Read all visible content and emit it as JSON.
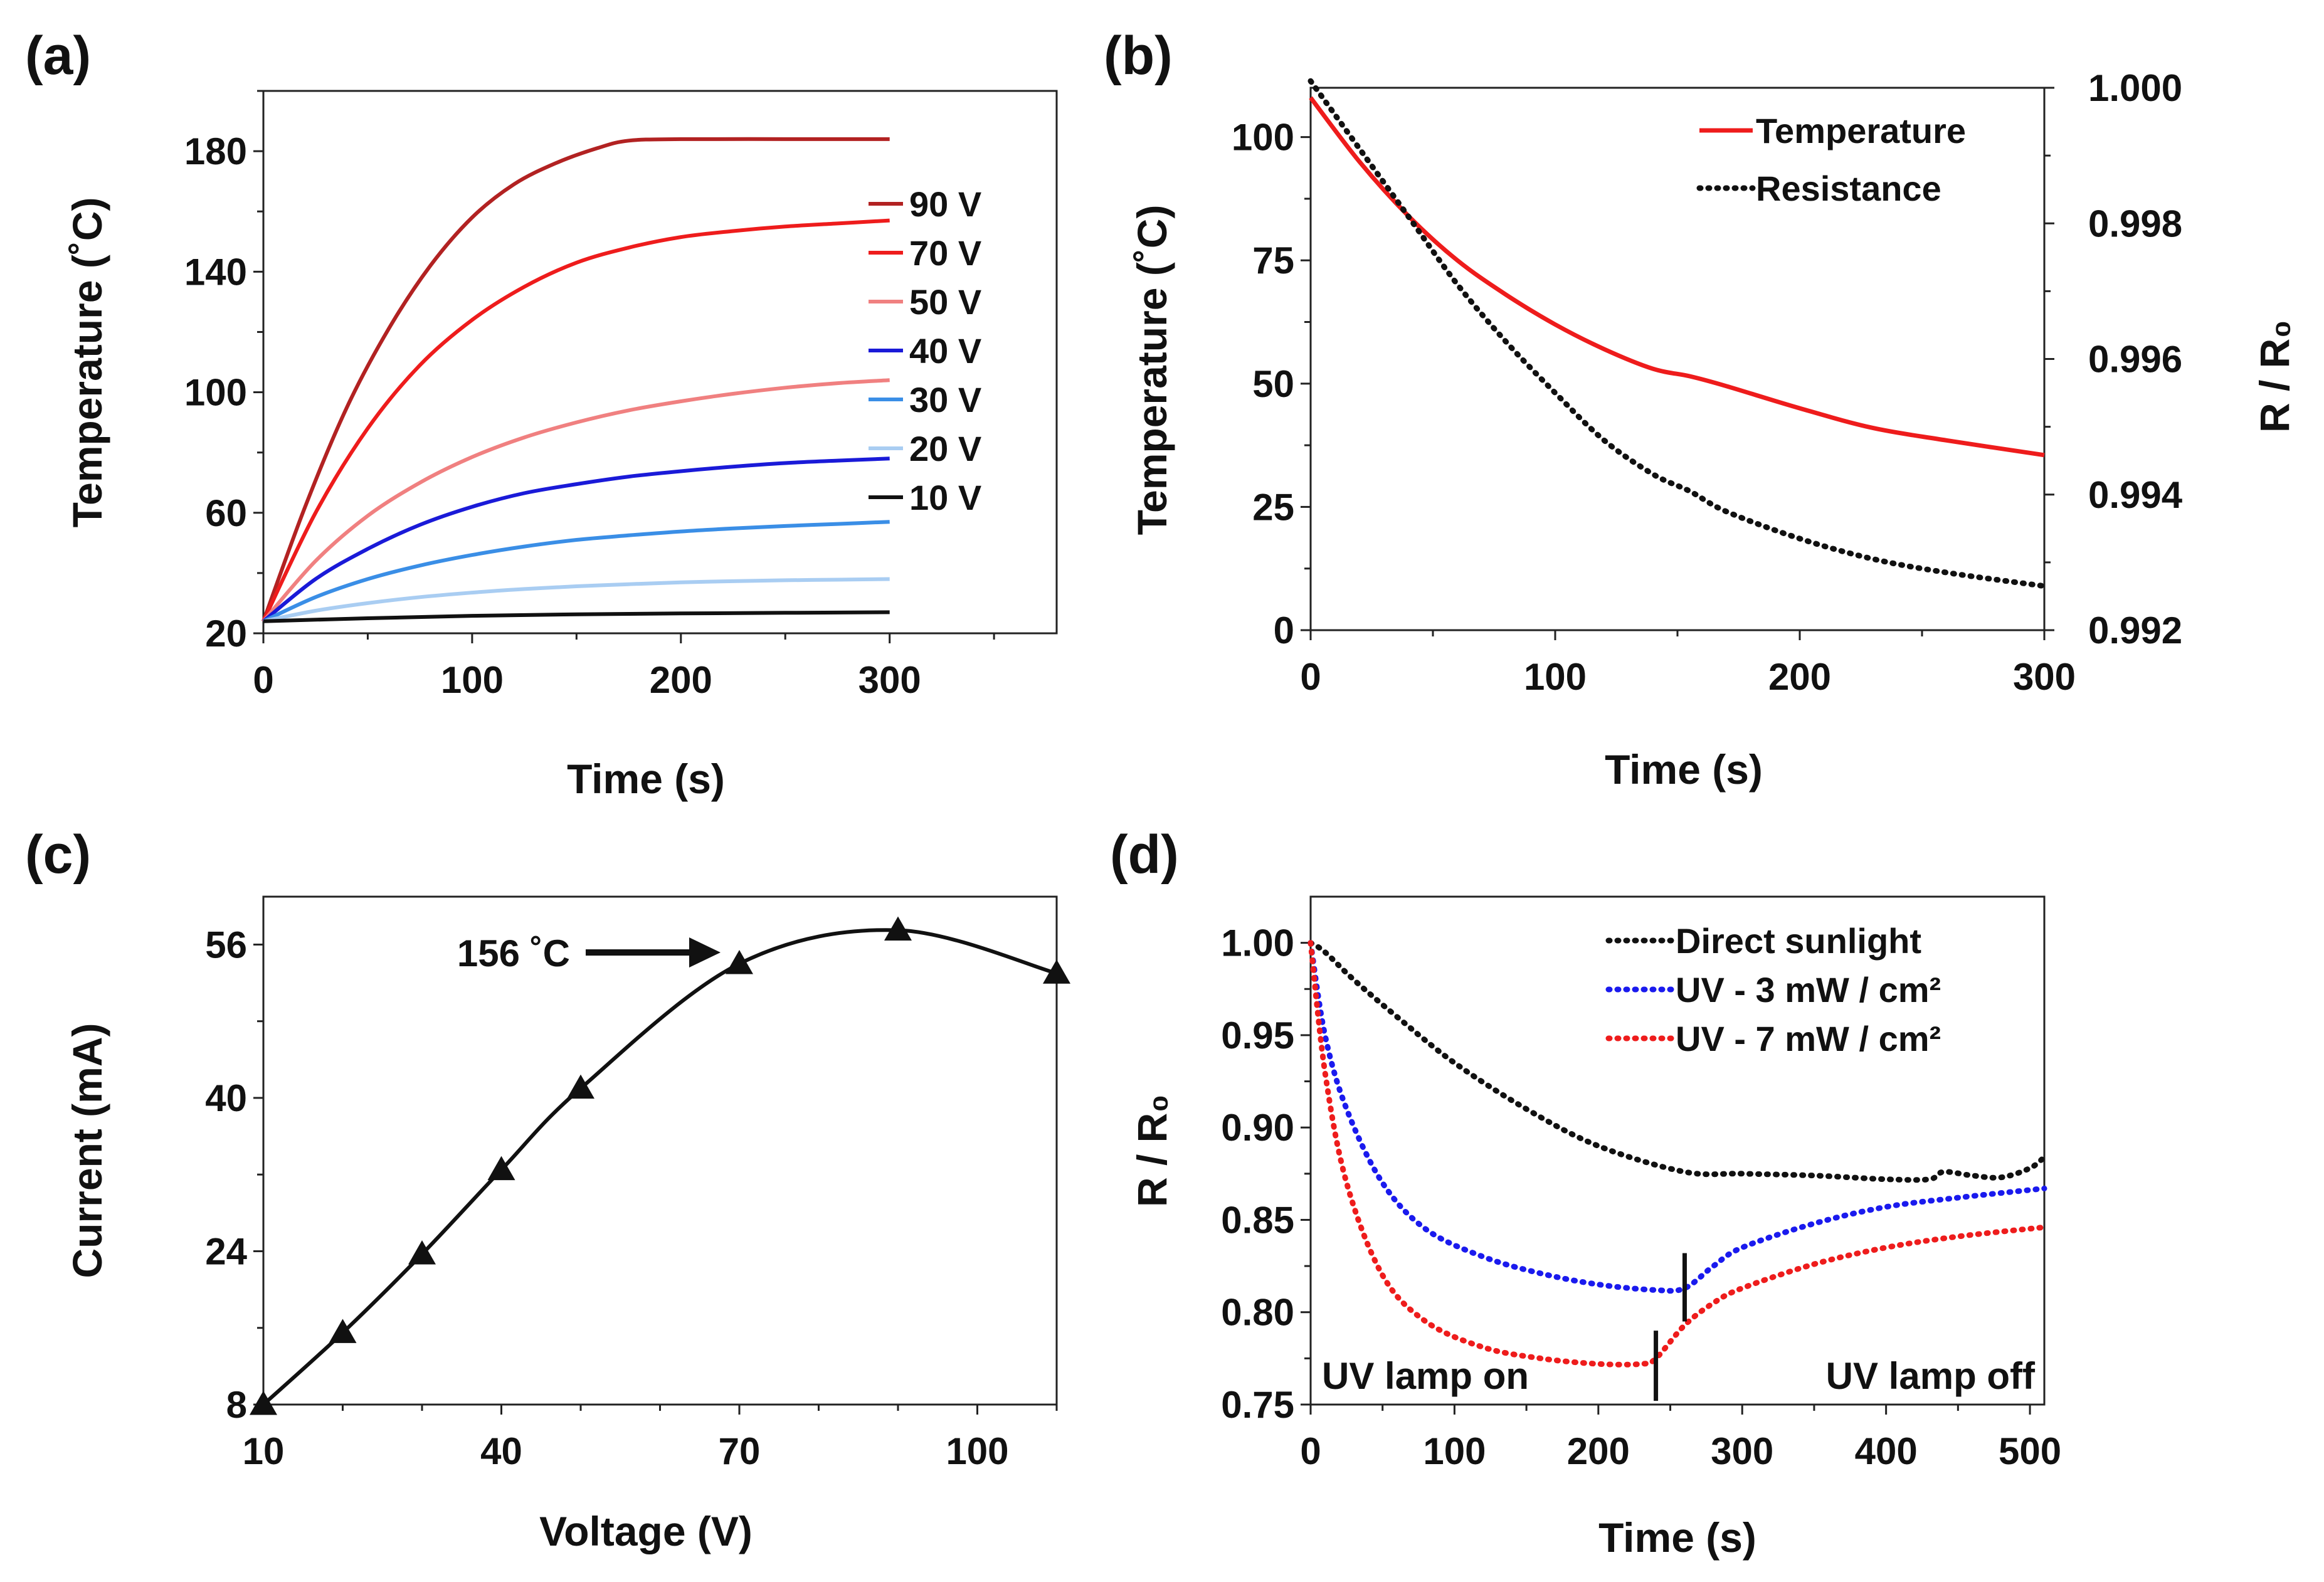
{
  "colors": {
    "v90": "#b22222",
    "v70": "#ee1c1c",
    "v50": "#f08080",
    "v40": "#1a1ad8",
    "v30": "#3a8ee6",
    "v20": "#a9cdf2",
    "v10": "#111111",
    "temperature": "#ee1c1c",
    "resistance": "#111111",
    "sunlight": "#111111",
    "uv3": "#1a1aee",
    "uv7": "#ee1c1c"
  },
  "chart_data": [
    {
      "panel": "(a)",
      "type": "line",
      "xlabel": "Time (s)",
      "ylabel": "Temperature (˚C)",
      "xlim": [
        0,
        380
      ],
      "ylim": [
        20,
        200
      ],
      "xticks": [
        0,
        100,
        200,
        300
      ],
      "xtick_labels": [
        "0",
        "100",
        "200",
        "300"
      ],
      "yticks": [
        20,
        60,
        100,
        140,
        180
      ],
      "ytick_labels": [
        "20",
        "60",
        "100",
        "140",
        "180"
      ],
      "series": [
        {
          "name": "90 V",
          "color_key": "v90",
          "x": [
            0,
            20,
            40,
            60,
            80,
            100,
            120,
            140,
            160,
            175,
            200,
            250,
            300
          ],
          "y": [
            24,
            62,
            95,
            121,
            142,
            158,
            169,
            176,
            181,
            183.5,
            184,
            184,
            184
          ]
        },
        {
          "name": "70 V",
          "color_key": "v70",
          "x": [
            0,
            25,
            50,
            75,
            100,
            125,
            150,
            175,
            200,
            225,
            250,
            275,
            300
          ],
          "y": [
            24,
            60,
            88,
            109,
            124,
            135,
            143,
            148,
            151.5,
            153.5,
            155,
            156,
            157
          ]
        },
        {
          "name": "50 V",
          "color_key": "v50",
          "x": [
            0,
            25,
            50,
            75,
            100,
            125,
            150,
            175,
            200,
            225,
            250,
            275,
            300
          ],
          "y": [
            24,
            44,
            59,
            70,
            78.5,
            85,
            90,
            94,
            97,
            99.5,
            101.5,
            103,
            104
          ]
        },
        {
          "name": "40 V",
          "color_key": "v40",
          "x": [
            0,
            25,
            50,
            75,
            100,
            125,
            150,
            175,
            200,
            225,
            250,
            275,
            300
          ],
          "y": [
            24,
            38,
            48,
            56,
            62,
            66.5,
            69.5,
            72,
            73.8,
            75.3,
            76.5,
            77.3,
            78
          ]
        },
        {
          "name": "30 V",
          "color_key": "v30",
          "x": [
            0,
            25,
            50,
            75,
            100,
            125,
            150,
            175,
            200,
            225,
            250,
            275,
            300
          ],
          "y": [
            24,
            32,
            38,
            42.5,
            46,
            48.8,
            51,
            52.5,
            53.8,
            54.8,
            55.6,
            56.3,
            57
          ]
        },
        {
          "name": "20 V",
          "color_key": "v20",
          "x": [
            0,
            25,
            50,
            75,
            100,
            125,
            150,
            175,
            200,
            225,
            250,
            275,
            300
          ],
          "y": [
            24,
            27.5,
            30,
            32,
            33.5,
            34.7,
            35.6,
            36.3,
            36.9,
            37.3,
            37.6,
            37.8,
            38
          ]
        },
        {
          "name": "10 V",
          "color_key": "v10",
          "x": [
            0,
            50,
            100,
            150,
            200,
            250,
            300
          ],
          "y": [
            24,
            25,
            25.8,
            26.3,
            26.6,
            26.8,
            27
          ]
        }
      ]
    },
    {
      "panel": "(b)",
      "type": "line",
      "xlabel": "Time (s)",
      "ylabel": "Temperature (˚C)",
      "y2label": "R / R₀",
      "xlim": [
        0,
        300
      ],
      "ylim": [
        0,
        110
      ],
      "y2lim": [
        0.992,
        1.0
      ],
      "xticks": [
        0,
        100,
        200,
        300
      ],
      "xtick_labels": [
        "0",
        "100",
        "200",
        "300"
      ],
      "yticks": [
        0,
        25,
        50,
        75,
        100
      ],
      "ytick_labels": [
        "0",
        "25",
        "50",
        "75",
        "100"
      ],
      "y2ticks": [
        0.992,
        0.994,
        0.996,
        0.998,
        1.0
      ],
      "y2tick_labels": [
        "0.992",
        "0.994",
        "0.996",
        "0.998",
        "1.000"
      ],
      "series": [
        {
          "name": "Temperature",
          "axis": "left",
          "color_key": "temperature",
          "dash": "solid",
          "x": [
            0,
            20,
            40,
            60,
            80,
            100,
            120,
            140,
            155,
            170,
            200,
            230,
            260,
            300
          ],
          "y": [
            108,
            95,
            84,
            75,
            68,
            62,
            57,
            53,
            51.5,
            49.5,
            45,
            41,
            38.5,
            35.5
          ]
        },
        {
          "name": "Resistance",
          "axis": "right",
          "color_key": "resistance",
          "dash": "dotted",
          "x": [
            0,
            20,
            40,
            60,
            80,
            100,
            120,
            140,
            155,
            170,
            200,
            230,
            260,
            300
          ],
          "y": [
            1.0001,
            0.9991,
            0.9981,
            0.9971,
            0.99625,
            0.9955,
            0.9948,
            0.9943,
            0.99405,
            0.99375,
            0.99335,
            0.99305,
            0.99285,
            0.99265
          ]
        }
      ]
    },
    {
      "panel": "(c)",
      "type": "line",
      "xlabel": "Voltage (V)",
      "ylabel": "Current (mA)",
      "xlim": [
        10,
        110
      ],
      "ylim": [
        8,
        61
      ],
      "xticks": [
        10,
        40,
        70,
        100
      ],
      "xtick_labels": [
        "10",
        "40",
        "70",
        "100"
      ],
      "yticks": [
        8,
        24,
        40,
        56
      ],
      "ytick_labels": [
        "8",
        "24",
        "40",
        "56"
      ],
      "markers": "triangle",
      "series": [
        {
          "name": "Current",
          "x": [
            10,
            20,
            30,
            40,
            50,
            70,
            90,
            110
          ],
          "y": [
            8,
            15.5,
            23.7,
            32.5,
            41,
            54,
            57.5,
            53
          ]
        }
      ],
      "annotation": {
        "text": "156 ˚C",
        "x": 70,
        "y": 54
      }
    },
    {
      "panel": "(d)",
      "type": "line",
      "xlabel": "Time (s)",
      "ylabel": "R / R₀",
      "xlim": [
        0,
        510
      ],
      "ylim": [
        0.75,
        1.025
      ],
      "xticks": [
        0,
        100,
        200,
        300,
        400,
        500
      ],
      "xtick_labels": [
        "0",
        "100",
        "200",
        "300",
        "400",
        "500"
      ],
      "yticks": [
        0.75,
        0.8,
        0.85,
        0.9,
        0.95,
        1.0
      ],
      "ytick_labels": [
        "0.75",
        "0.80",
        "0.85",
        "0.90",
        "0.95",
        "1.00"
      ],
      "series": [
        {
          "name": "Direct sunlight",
          "color_key": "sunlight",
          "dash": "dotted",
          "x": [
            0,
            10,
            30,
            60,
            100,
            150,
            200,
            260,
            300,
            350,
            400,
            430,
            440,
            460,
            480,
            500,
            510
          ],
          "y": [
            1.0,
            0.995,
            0.98,
            0.96,
            0.935,
            0.91,
            0.89,
            0.876,
            0.875,
            0.874,
            0.872,
            0.872,
            0.876,
            0.874,
            0.873,
            0.878,
            0.884
          ]
        },
        {
          "name": "UV - 3 mW / cm²",
          "color_key": "uv3",
          "dash": "dotted",
          "x": [
            0,
            10,
            25,
            50,
            80,
            120,
            160,
            200,
            240,
            260,
            280,
            300,
            350,
            400,
            450,
            510
          ],
          "y": [
            1.0,
            0.95,
            0.91,
            0.87,
            0.845,
            0.83,
            0.821,
            0.815,
            0.812,
            0.813,
            0.825,
            0.835,
            0.848,
            0.857,
            0.862,
            0.867
          ]
        },
        {
          "name": "UV - 7 mW / cm²",
          "color_key": "uv7",
          "dash": "dotted",
          "x": [
            0,
            10,
            25,
            50,
            80,
            120,
            160,
            200,
            230,
            240,
            260,
            280,
            300,
            350,
            400,
            450,
            510
          ],
          "y": [
            1.0,
            0.93,
            0.87,
            0.82,
            0.795,
            0.781,
            0.775,
            0.772,
            0.772,
            0.775,
            0.793,
            0.805,
            0.813,
            0.826,
            0.835,
            0.841,
            0.846
          ]
        }
      ],
      "markers_vertical": [
        {
          "x": 240,
          "y_from": 0.752,
          "y_to": 0.79
        },
        {
          "x": 260,
          "y_from": 0.795,
          "y_to": 0.832
        }
      ],
      "annotations": [
        {
          "text": "UV lamp on"
        },
        {
          "text": "UV lamp off"
        }
      ]
    }
  ]
}
